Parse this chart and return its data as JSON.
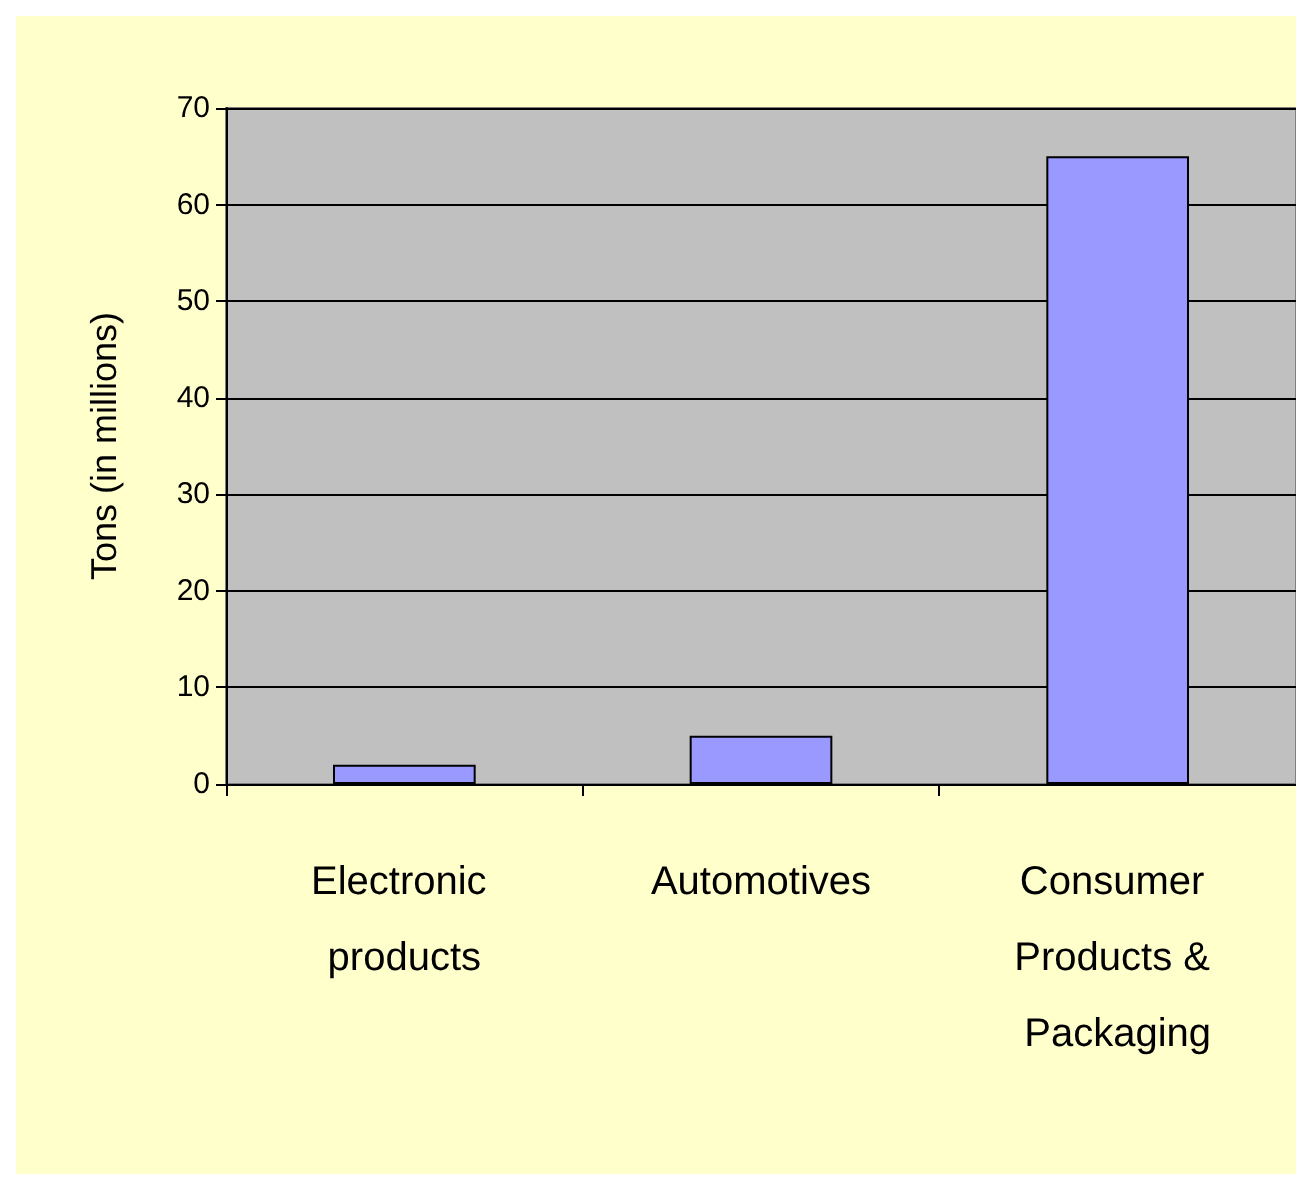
{
  "chart_data": {
    "type": "bar",
    "ylabel": "Tons (in millions)",
    "categories": [
      "Electronic products",
      "Automotives",
      "Consumer Products & Packaging"
    ],
    "values": [
      2,
      5,
      65
    ],
    "color": "#9999ff",
    "ylim": [
      0,
      70
    ],
    "yticks": [
      0,
      10,
      20,
      30,
      40,
      50,
      60,
      70
    ],
    "grid": "y"
  }
}
